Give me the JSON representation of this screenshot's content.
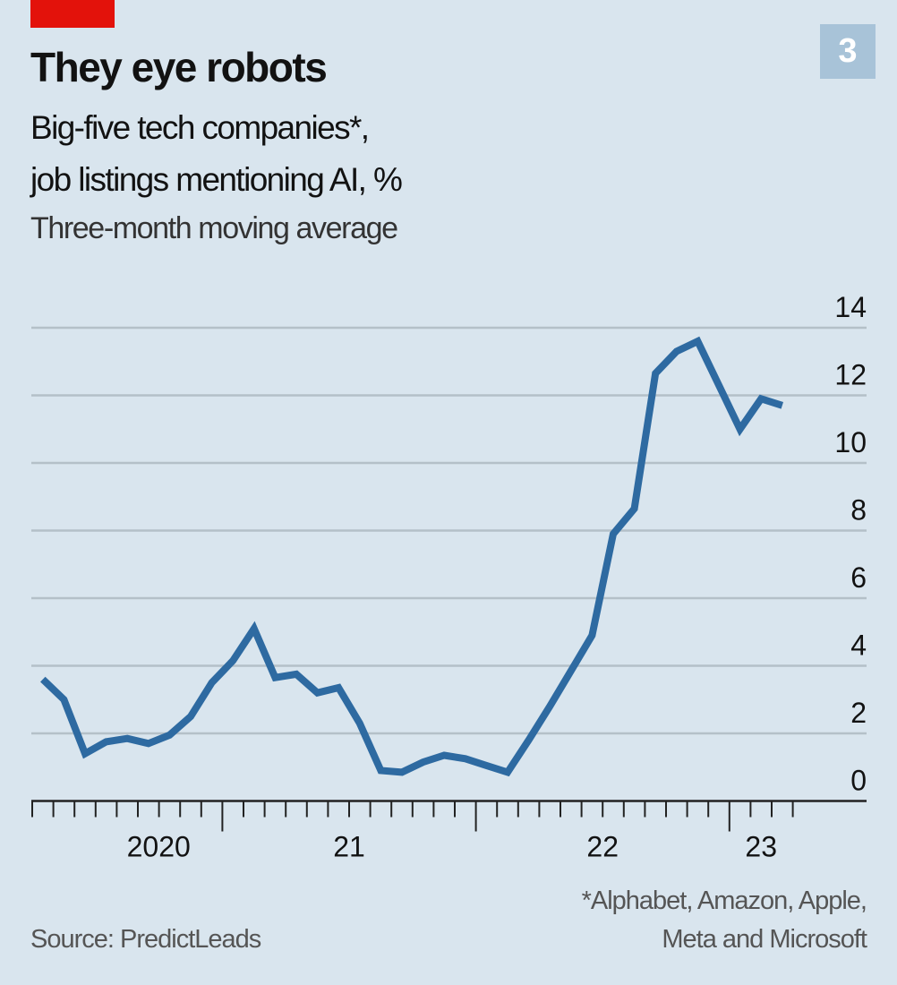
{
  "chart_number": "3",
  "colors": {
    "accent": "#e3120b",
    "line": "#2e6aa1",
    "background": "#d9e5ee",
    "grid": "#b4c0c8"
  },
  "chart_data": {
    "type": "line",
    "title": "They eye robots",
    "subtitle_lines": [
      "Big-five tech companies*,",
      "job listings mentioning AI, %"
    ],
    "subtitle_note": "Three-month moving average",
    "xlabel": "",
    "ylabel": "",
    "x_start": "2020-04",
    "x_end": "2023-03",
    "x_tick_labels": [
      {
        "label": "2020",
        "year": 2020
      },
      {
        "label": "21",
        "year": 2021
      },
      {
        "label": "22",
        "year": 2022
      },
      {
        "label": "23",
        "year": 2023
      }
    ],
    "ylim": [
      0,
      14
    ],
    "y_ticks": [
      0,
      2,
      4,
      6,
      8,
      10,
      12,
      14
    ],
    "grid": true,
    "series": [
      {
        "name": "Job listings mentioning AI",
        "x": [
          "2020-04",
          "2020-05",
          "2020-06",
          "2020-07",
          "2020-08",
          "2020-09",
          "2020-10",
          "2020-11",
          "2020-12",
          "2021-01",
          "2021-02",
          "2021-03",
          "2021-04",
          "2021-05",
          "2021-06",
          "2021-07",
          "2021-08",
          "2021-09",
          "2021-10",
          "2021-11",
          "2021-12",
          "2022-01",
          "2022-02",
          "2022-03",
          "2022-04",
          "2022-05",
          "2022-06",
          "2022-07",
          "2022-08",
          "2022-09",
          "2022-10",
          "2022-11",
          "2022-12",
          "2023-01",
          "2023-02",
          "2023-03"
        ],
        "values": [
          3.6,
          3.0,
          1.4,
          1.75,
          1.85,
          1.7,
          1.95,
          2.5,
          3.5,
          4.15,
          5.1,
          3.65,
          3.75,
          3.2,
          3.35,
          2.3,
          0.9,
          0.85,
          1.15,
          1.35,
          1.25,
          1.05,
          0.85,
          1.8,
          2.8,
          3.85,
          4.9,
          7.9,
          8.65,
          12.65,
          13.3,
          13.6,
          12.3,
          11.0,
          11.9,
          11.7
        ]
      }
    ],
    "footnote_lines": [
      "*Alphabet, Amazon, Apple,",
      "Meta and Microsoft"
    ],
    "source": "Source: PredictLeads"
  }
}
